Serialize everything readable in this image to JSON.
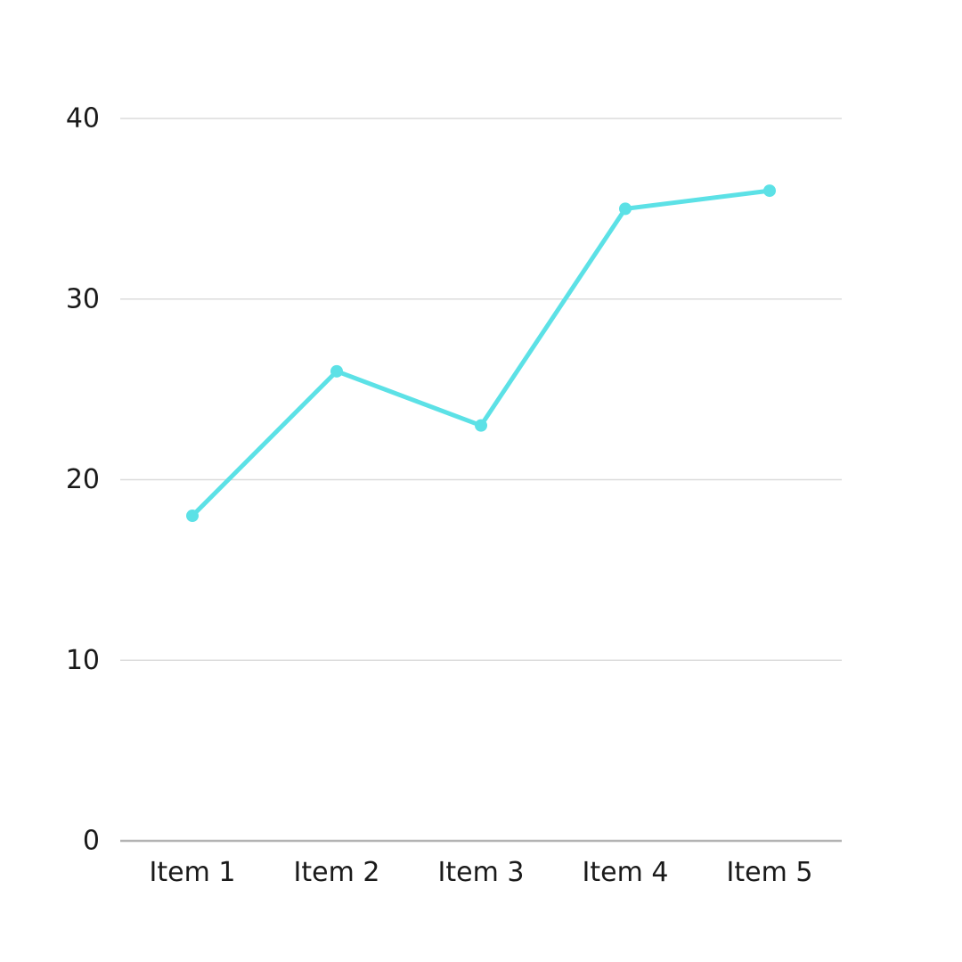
{
  "chart_data": {
    "type": "line",
    "categories": [
      "Item 1",
      "Item 2",
      "Item 3",
      "Item 4",
      "Item 5"
    ],
    "values": [
      18,
      26,
      23,
      35,
      36
    ],
    "title": "",
    "xlabel": "",
    "ylabel": "",
    "ylim": [
      0,
      40
    ],
    "yticks": [
      0,
      10,
      20,
      30,
      40
    ],
    "grid": "horizontal",
    "legend": "none",
    "colors": {
      "line": "#5CE1E6",
      "marker": "#5CE1E6",
      "gridline": "#dcdcdc",
      "axis_line": "#b3b3b3",
      "label": "#1a1a1a",
      "background": "#ffffff"
    },
    "style": {
      "line_width": 5,
      "marker_radius": 7,
      "label_font_size": 30
    }
  }
}
